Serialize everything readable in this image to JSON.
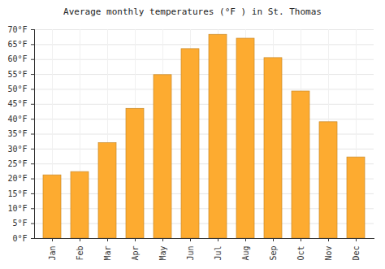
{
  "chart_data": {
    "type": "bar",
    "title": "Average monthly temperatures (°F ) in St. Thomas",
    "categories": [
      "Jan",
      "Feb",
      "Mar",
      "Apr",
      "May",
      "Jun",
      "Jul",
      "Aug",
      "Sep",
      "Oct",
      "Nov",
      "Dec"
    ],
    "values": [
      21.2,
      22.3,
      32,
      43.5,
      54.8,
      63.5,
      68.3,
      67,
      60.5,
      49.3,
      39,
      27.2
    ],
    "color": "#fdab30",
    "ylim": [
      0,
      70
    ],
    "yticks": [
      {
        "value": 0,
        "label": "0°F"
      },
      {
        "value": 5,
        "label": "5°F"
      },
      {
        "value": 10,
        "label": "10°F"
      },
      {
        "value": 15,
        "label": "15°F"
      },
      {
        "value": 20,
        "label": "20°F"
      },
      {
        "value": 25,
        "label": "25°F"
      },
      {
        "value": 30,
        "label": "30°F"
      },
      {
        "value": 35,
        "label": "35°F"
      },
      {
        "value": 40,
        "label": "40°F"
      },
      {
        "value": 45,
        "label": "45°F"
      },
      {
        "value": 50,
        "label": "50°F"
      },
      {
        "value": 55,
        "label": "55°F"
      },
      {
        "value": 60,
        "label": "60°F"
      },
      {
        "value": 65,
        "label": "65°F"
      },
      {
        "value": 70,
        "label": "70°F"
      }
    ],
    "grid": true
  }
}
